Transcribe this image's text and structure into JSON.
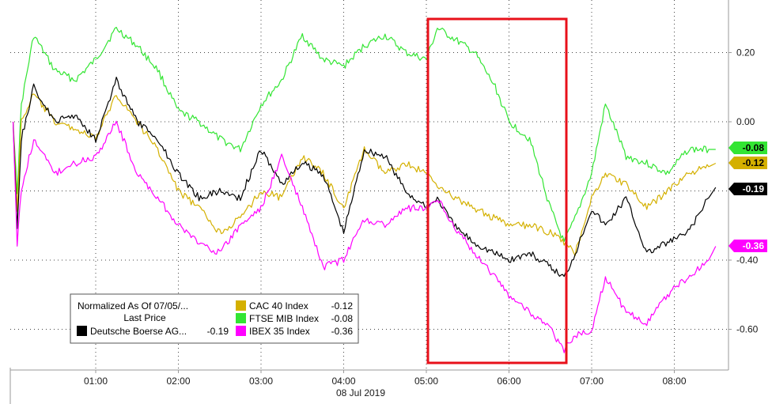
{
  "chart_data": {
    "type": "line",
    "date_label": "08 Jul 2019",
    "x_ticks": [
      "01:00",
      "02:00",
      "03:00",
      "04:00",
      "05:00",
      "06:00",
      "07:00",
      "08:00"
    ],
    "y_ticks": [
      "0.20",
      "0.00",
      "-0.40",
      "-0.60"
    ],
    "ylim": [
      -0.72,
      0.33
    ],
    "grid": true,
    "legend": {
      "position": "bottom-left",
      "header_line1": "Normalized As Of 07/05/...",
      "header_line2": "Last Price",
      "entries": [
        {
          "name": "Deutsche Boerse AG...",
          "value": "-0.19",
          "color": "#000000"
        },
        {
          "name": "CAC 40 Index",
          "value": "-0.12",
          "color": "#d4b000"
        },
        {
          "name": "FTSE MIB Index",
          "value": "-0.08",
          "color": "#33e533"
        },
        {
          "name": "IBEX 35 Index",
          "value": "-0.36",
          "color": "#ff00ff"
        }
      ]
    },
    "badges": [
      {
        "label": "-0.08",
        "value": -0.08,
        "color": "#33e533",
        "text_color": "#000000"
      },
      {
        "label": "-0.12",
        "value": -0.12,
        "color": "#d4b000",
        "text_color": "#000000"
      },
      {
        "label": "-0.19",
        "value": -0.19,
        "color": "#000000",
        "text_color": "#ffffff"
      },
      {
        "label": "-0.36",
        "value": -0.36,
        "color": "#ff00ff",
        "text_color": "#ffffff"
      }
    ],
    "highlight": {
      "from": "05:00",
      "to": "06:43",
      "color": "#e8101a"
    },
    "series": [
      {
        "name": "FTSE MIB Index",
        "color": "#33e533",
        "x": [
          "00:00",
          "00:03",
          "00:06",
          "00:15",
          "00:30",
          "00:45",
          "01:00",
          "01:15",
          "01:30",
          "01:45",
          "02:00",
          "02:15",
          "02:30",
          "02:45",
          "03:00",
          "03:15",
          "03:30",
          "03:45",
          "04:00",
          "04:15",
          "04:30",
          "04:45",
          "05:00",
          "05:08",
          "05:20",
          "05:35",
          "05:50",
          "06:00",
          "06:15",
          "06:30",
          "06:40",
          "06:48",
          "07:00",
          "07:10",
          "07:25",
          "07:40",
          "07:55",
          "08:10",
          "08:25",
          "08:30"
        ],
        "y": [
          0.0,
          -0.2,
          0.05,
          0.25,
          0.15,
          0.12,
          0.18,
          0.27,
          0.22,
          0.15,
          0.03,
          0.0,
          -0.05,
          -0.08,
          0.05,
          0.12,
          0.25,
          0.18,
          0.16,
          0.22,
          0.25,
          0.2,
          0.18,
          0.27,
          0.24,
          0.2,
          0.1,
          0.0,
          -0.05,
          -0.25,
          -0.35,
          -0.28,
          -0.15,
          0.05,
          -0.1,
          -0.12,
          -0.15,
          -0.08,
          -0.08,
          -0.08
        ]
      },
      {
        "name": "CAC 40 Index",
        "color": "#d4b000",
        "x": [
          "00:00",
          "00:03",
          "00:06",
          "00:15",
          "00:30",
          "00:45",
          "01:00",
          "01:15",
          "01:30",
          "01:45",
          "02:00",
          "02:15",
          "02:30",
          "02:45",
          "03:00",
          "03:15",
          "03:30",
          "03:45",
          "04:00",
          "04:15",
          "04:30",
          "04:45",
          "05:00",
          "05:08",
          "05:20",
          "05:35",
          "05:50",
          "06:00",
          "06:15",
          "06:30",
          "06:40",
          "06:48",
          "07:00",
          "07:10",
          "07:25",
          "07:40",
          "07:55",
          "08:10",
          "08:25",
          "08:30"
        ],
        "y": [
          0.0,
          -0.25,
          0.0,
          0.08,
          0.0,
          -0.02,
          -0.05,
          0.08,
          0.0,
          -0.08,
          -0.2,
          -0.25,
          -0.32,
          -0.28,
          -0.2,
          -0.22,
          -0.1,
          -0.15,
          -0.25,
          -0.08,
          -0.15,
          -0.12,
          -0.15,
          -0.18,
          -0.22,
          -0.25,
          -0.28,
          -0.3,
          -0.3,
          -0.32,
          -0.35,
          -0.38,
          -0.22,
          -0.15,
          -0.18,
          -0.25,
          -0.2,
          -0.15,
          -0.13,
          -0.12
        ]
      },
      {
        "name": "Deutsche Boerse AG...",
        "color": "#000000",
        "x": [
          "00:00",
          "00:03",
          "00:06",
          "00:15",
          "00:30",
          "00:45",
          "01:00",
          "01:15",
          "01:30",
          "01:45",
          "02:00",
          "02:15",
          "02:30",
          "02:45",
          "03:00",
          "03:15",
          "03:30",
          "03:45",
          "04:00",
          "04:15",
          "04:30",
          "04:45",
          "05:00",
          "05:08",
          "05:20",
          "05:35",
          "05:50",
          "06:00",
          "06:15",
          "06:30",
          "06:40",
          "06:48",
          "07:00",
          "07:10",
          "07:25",
          "07:40",
          "07:55",
          "08:10",
          "08:25",
          "08:30"
        ],
        "y": [
          0.0,
          -0.3,
          -0.05,
          0.1,
          0.0,
          0.02,
          -0.05,
          0.12,
          0.0,
          -0.05,
          -0.15,
          -0.22,
          -0.2,
          -0.22,
          -0.08,
          -0.18,
          -0.12,
          -0.15,
          -0.32,
          -0.08,
          -0.1,
          -0.2,
          -0.25,
          -0.22,
          -0.3,
          -0.35,
          -0.38,
          -0.4,
          -0.38,
          -0.42,
          -0.45,
          -0.38,
          -0.25,
          -0.3,
          -0.22,
          -0.38,
          -0.35,
          -0.32,
          -0.22,
          -0.19
        ]
      },
      {
        "name": "IBEX 35 Index",
        "color": "#ff00ff",
        "x": [
          "00:00",
          "00:03",
          "00:06",
          "00:15",
          "00:30",
          "00:45",
          "01:00",
          "01:15",
          "01:30",
          "01:45",
          "02:00",
          "02:15",
          "02:30",
          "02:45",
          "03:00",
          "03:15",
          "03:30",
          "03:45",
          "04:00",
          "04:15",
          "04:30",
          "04:45",
          "05:00",
          "05:08",
          "05:20",
          "05:35",
          "05:50",
          "06:00",
          "06:15",
          "06:30",
          "06:40",
          "06:48",
          "07:00",
          "07:10",
          "07:25",
          "07:40",
          "07:55",
          "08:10",
          "08:25",
          "08:30"
        ],
        "y": [
          0.0,
          -0.35,
          -0.2,
          -0.05,
          -0.15,
          -0.12,
          -0.1,
          0.0,
          -0.15,
          -0.22,
          -0.3,
          -0.35,
          -0.38,
          -0.3,
          -0.25,
          -0.1,
          -0.25,
          -0.42,
          -0.4,
          -0.28,
          -0.3,
          -0.25,
          -0.25,
          -0.22,
          -0.3,
          -0.38,
          -0.45,
          -0.5,
          -0.55,
          -0.6,
          -0.66,
          -0.62,
          -0.6,
          -0.45,
          -0.55,
          -0.58,
          -0.5,
          -0.45,
          -0.4,
          -0.36
        ]
      }
    ]
  }
}
